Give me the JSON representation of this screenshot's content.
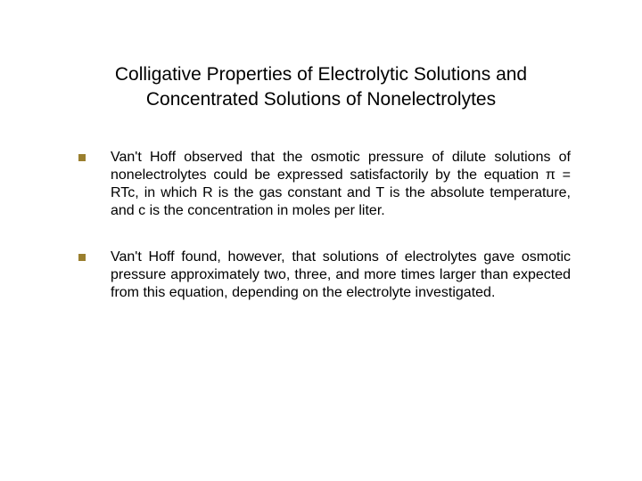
{
  "title": "Colligative Properties of Electrolytic Solutions and Concentrated Solutions of Nonelectrolytes",
  "bullets": [
    {
      "text": "Van't Hoff observed that the osmotic pressure of dilute solutions of nonelectrolytes could be expressed satisfactorily by the equation π = RTc, in which R is the gas constant and T is the absolute temperature, and c is the concentration in moles per liter."
    },
    {
      "text": "Van't Hoff found, however, that solutions of electrolytes gave osmotic pressure approximately two, three, and more times larger than expected from this equation, depending on the electrolyte investigated."
    }
  ],
  "colors": {
    "bullet_fill": "#9a7f2e",
    "text": "#000000",
    "background": "#ffffff"
  },
  "typography": {
    "title_fontsize": 21,
    "body_fontsize": 16,
    "font_family": "Arial"
  }
}
